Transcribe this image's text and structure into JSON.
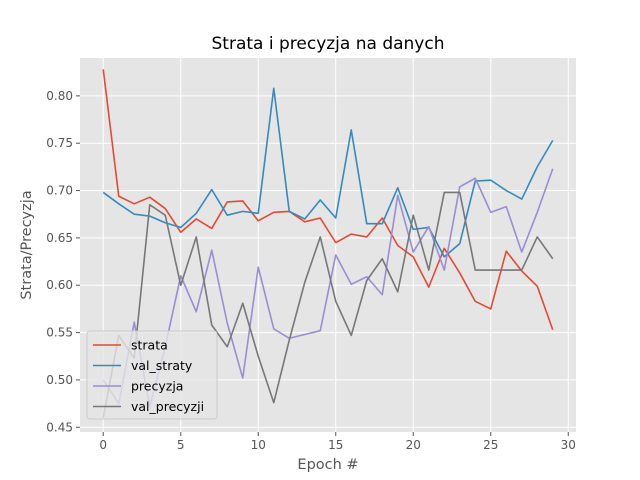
{
  "chart_data": {
    "type": "line",
    "title": "Strata i precyzja na danych",
    "xlabel": "Epoch #",
    "ylabel": "Strata/Precyzja",
    "xlim": [
      -1.5,
      30.5
    ],
    "ylim": [
      0.445,
      0.84
    ],
    "xticks": [
      0,
      5,
      10,
      15,
      20,
      25,
      30
    ],
    "yticks": [
      0.45,
      0.5,
      0.55,
      0.6,
      0.65,
      0.7,
      0.75,
      0.8
    ],
    "grid": true,
    "legend_position": "lower-left",
    "x": [
      0,
      1,
      2,
      3,
      4,
      5,
      6,
      7,
      8,
      9,
      10,
      11,
      12,
      13,
      14,
      15,
      16,
      17,
      18,
      19,
      20,
      21,
      22,
      23,
      24,
      25,
      26,
      27,
      28,
      29
    ],
    "series": [
      {
        "name": "strata",
        "color": "#E24A33",
        "values": [
          0.828,
          0.694,
          0.686,
          0.693,
          0.681,
          0.656,
          0.67,
          0.66,
          0.688,
          0.689,
          0.668,
          0.677,
          0.678,
          0.667,
          0.671,
          0.645,
          0.654,
          0.651,
          0.671,
          0.642,
          0.63,
          0.598,
          0.639,
          0.613,
          0.583,
          0.575,
          0.636,
          0.615,
          0.599,
          0.553
        ]
      },
      {
        "name": "val_straty",
        "color": "#348ABD",
        "values": [
          0.698,
          0.686,
          0.675,
          0.673,
          0.666,
          0.661,
          0.676,
          0.701,
          0.674,
          0.678,
          0.676,
          0.808,
          0.678,
          0.67,
          0.69,
          0.671,
          0.764,
          0.665,
          0.665,
          0.703,
          0.659,
          0.661,
          0.63,
          0.644,
          0.71,
          0.711,
          0.7,
          0.691,
          0.725,
          0.753
        ]
      },
      {
        "name": "precyzja",
        "color": "#988ED5",
        "values": [
          0.5,
          0.475,
          0.561,
          0.472,
          0.535,
          0.61,
          0.572,
          0.637,
          0.56,
          0.502,
          0.619,
          0.554,
          0.544,
          0.548,
          0.552,
          0.632,
          0.601,
          0.609,
          0.59,
          0.695,
          0.635,
          0.662,
          0.616,
          0.704,
          0.713,
          0.677,
          0.683,
          0.635,
          0.677,
          0.723
        ]
      },
      {
        "name": "val_precyzji",
        "color": "#777777",
        "values": [
          0.46,
          0.547,
          0.523,
          0.685,
          0.674,
          0.6,
          0.651,
          0.558,
          0.535,
          0.581,
          0.525,
          0.476,
          0.542,
          0.603,
          0.651,
          0.583,
          0.547,
          0.605,
          0.628,
          0.593,
          0.674,
          0.616,
          0.698,
          0.698,
          0.616,
          0.616,
          0.616,
          0.616,
          0.651,
          0.628
        ]
      }
    ]
  }
}
